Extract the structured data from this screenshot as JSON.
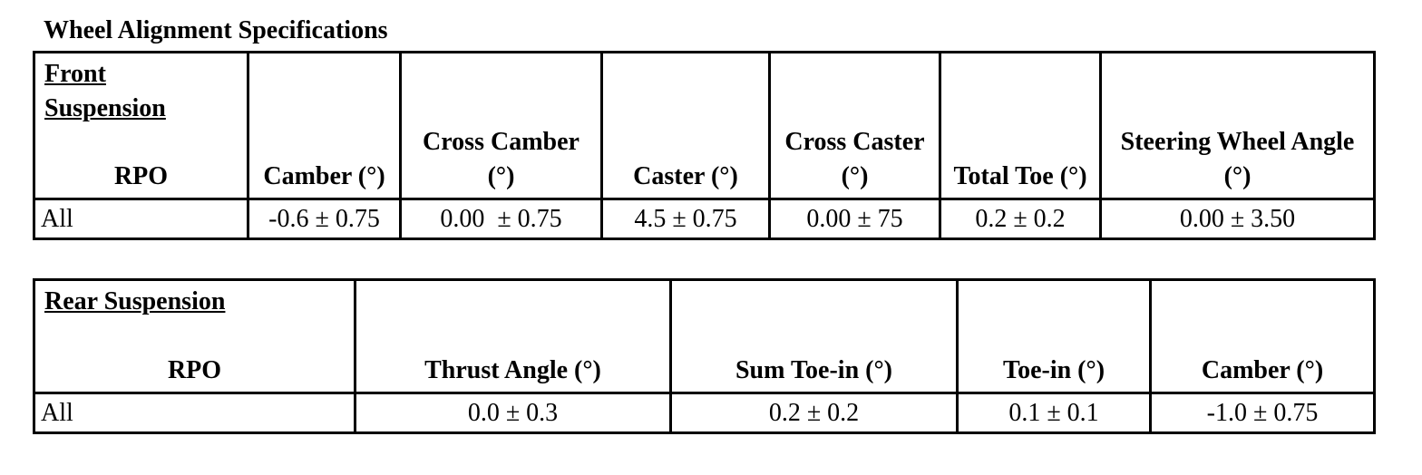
{
  "title": "Wheel Alignment Specifications",
  "front": {
    "label": "Front Suspension",
    "headers": [
      "RPO",
      "Camber (°)",
      "Cross Camber (°)",
      "Caster (°)",
      "Cross Caster (°)",
      "Total Toe (°)",
      "Steering Wheel Angle (°)"
    ],
    "rows": [
      [
        "All",
        "-0.6 ± 0.75",
        "0.00  ± 0.75",
        "4.5 ± 0.75",
        "0.00 ± 75",
        "0.2 ± 0.2",
        "0.00 ± 3.50"
      ]
    ]
  },
  "rear": {
    "label": "Rear Suspension",
    "headers": [
      "RPO",
      "Thrust Angle (°)",
      "Sum Toe-in (°)",
      "Toe-in (°)",
      "Camber (°)"
    ],
    "rows": [
      [
        "All",
        "0.0 ± 0.3",
        "0.2 ± 0.2",
        "0.1 ± 0.1",
        "-1.0 ± 0.75"
      ]
    ]
  }
}
